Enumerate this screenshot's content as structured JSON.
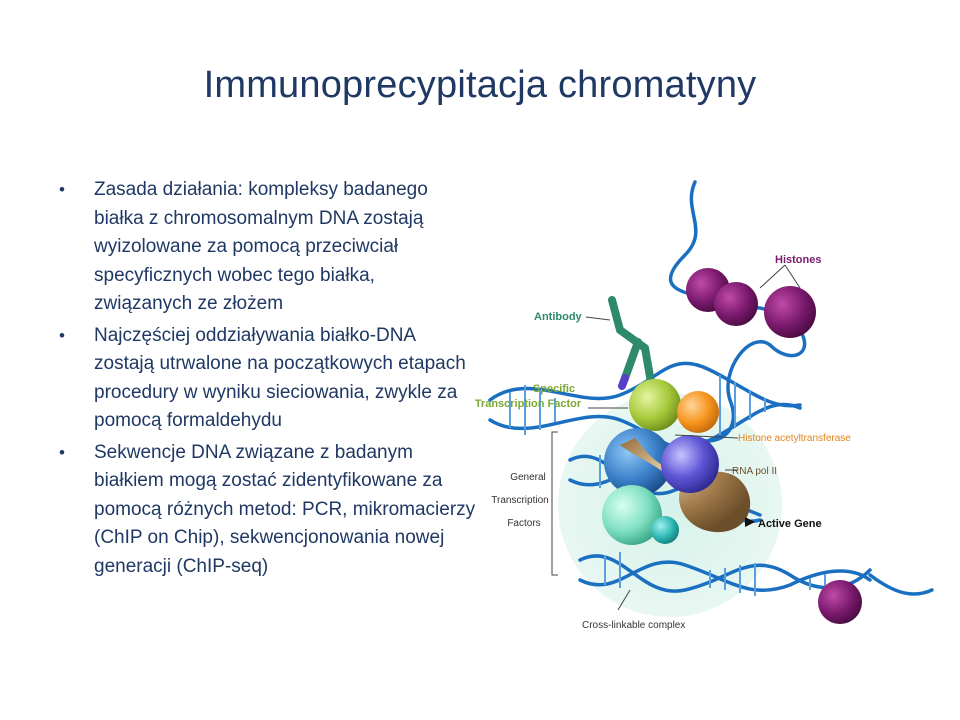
{
  "slide": {
    "title": "Immunoprecypitacja chromatyny",
    "bullets": [
      "Zasada działania: kompleksy badanego białka z chromosomalnym DNA zostają wyizolowane za pomocą przeciwciał specyficznych wobec tego białka, związanych ze złożem",
      "Najczęściej oddziaływania białko-DNA zostają utrwalone na początkowych etapach procedury w wyniku sieciowania, zwykle za pomocą formaldehydu",
      "Sekwencje DNA związane z badanym białkiem mogą zostać zidentyfikowane za pomocą różnych metod: PCR, mikromacierzy (ChIP on Chip), sekwencjonowania nowej generacji (ChIP-seq)"
    ],
    "bullet_symbol": "•"
  },
  "figure": {
    "labels": {
      "histones": "Histones",
      "antibody": "Antibody",
      "specific_tf_line1": "Specific",
      "specific_tf_line2": "Transcription Factor",
      "histone_acetyltransferase": "Histone acetyltransferase",
      "rna_pol": "RNA pol II",
      "general_tf_line1": "General",
      "general_tf_line2": "Transcription",
      "general_tf_line3": "Factors",
      "active_gene": "Active Gene",
      "cross_linkable": "Cross-linkable complex"
    },
    "colors": {
      "dna": "#1b6fc0",
      "histone": "#7a1a6e",
      "antibody": "#2e8a6a",
      "specific_tf": "#a6c93a",
      "hat": "#f7941d",
      "rna_pol": "#a07a4a",
      "label_purple": "#7a1a6e",
      "label_green": "#7aa832",
      "label_orange": "#e2841a"
    }
  }
}
